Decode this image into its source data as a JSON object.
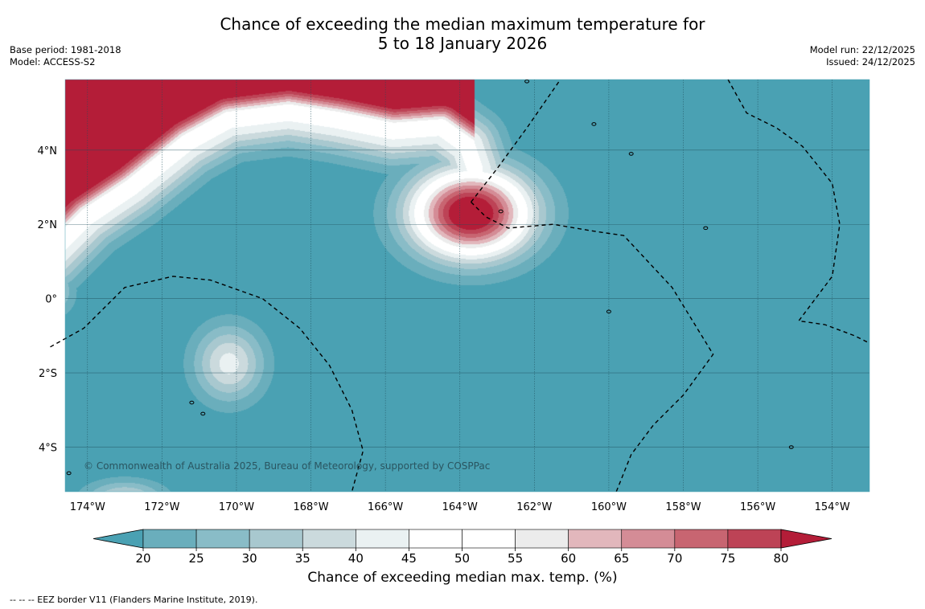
{
  "title": {
    "line1": "Chance of exceeding the median maximum temperature for",
    "line2": "5 to 18 January 2026"
  },
  "meta_left": {
    "base_period": "Base period: 1981-2018",
    "model": "Model: ACCESS-S2"
  },
  "meta_right": {
    "model_run": "Model run: 22/12/2025",
    "issued": "Issued: 24/12/2025"
  },
  "map": {
    "copyright": "© Commonwealth of Australia 2025, Bureau of Meteorology, supported by COSPPac",
    "lon_range": [
      -174.6,
      -153.0
    ],
    "lat_range": [
      -5.2,
      5.9
    ],
    "lon_ticks": [
      {
        "value": -174,
        "label": "174°W"
      },
      {
        "value": -172,
        "label": "172°W"
      },
      {
        "value": -170,
        "label": "170°W"
      },
      {
        "value": -168,
        "label": "168°W"
      },
      {
        "value": -166,
        "label": "166°W"
      },
      {
        "value": -164,
        "label": "164°W"
      },
      {
        "value": -162,
        "label": "162°W"
      },
      {
        "value": -160,
        "label": "160°W"
      },
      {
        "value": -158,
        "label": "158°W"
      },
      {
        "value": -156,
        "label": "156°W"
      },
      {
        "value": -154,
        "label": "154°W"
      }
    ],
    "lat_ticks": [
      {
        "value": 4,
        "label": "4°N"
      },
      {
        "value": 2,
        "label": "2°N"
      },
      {
        "value": 0,
        "label": "0°"
      },
      {
        "value": -2,
        "label": "2°S"
      },
      {
        "value": -4,
        "label": "4°S"
      }
    ],
    "background_value": 15,
    "features": [
      {
        "type": "warm-band",
        "path": [
          [
            -175,
            1.2
          ],
          [
            -174,
            2.2
          ],
          [
            -172.8,
            3.0
          ],
          [
            -171.3,
            4.2
          ],
          [
            -170.2,
            4.8
          ],
          [
            -168.6,
            5.0
          ],
          [
            -167.3,
            4.8
          ],
          [
            -165.8,
            4.5
          ],
          [
            -164.5,
            4.6
          ],
          [
            -163.8,
            4.1
          ],
          [
            -163.6,
            3.5
          ]
        ],
        "peak": 47,
        "width": 0.85
      },
      {
        "type": "warm-blob",
        "lon": -163.7,
        "lat": 2.3,
        "rx": 1.95,
        "ry": 1.45,
        "peak": 90
      },
      {
        "type": "cool-blob",
        "lon": -170.2,
        "lat": -1.75,
        "rx": 1.15,
        "ry": 1.25,
        "peak": 42
      },
      {
        "type": "cool-blob",
        "lon": -173.0,
        "lat": -5.4,
        "rx": 1.3,
        "ry": 0.6,
        "peak": 38
      },
      {
        "type": "cool-blob",
        "lon": -174.8,
        "lat": 0.2,
        "rx": 0.6,
        "ry": 0.8,
        "peak": 30
      }
    ],
    "islands": [
      {
        "lon": -162.2,
        "lat": 5.85
      },
      {
        "lon": -160.4,
        "lat": 4.7
      },
      {
        "lon": -159.4,
        "lat": 3.9
      },
      {
        "lon": -157.4,
        "lat": 1.9
      },
      {
        "lon": -162.9,
        "lat": 2.35
      },
      {
        "lon": -171.2,
        "lat": -2.8
      },
      {
        "lon": -170.9,
        "lat": -3.1
      },
      {
        "lon": -155.1,
        "lat": -4.0
      },
      {
        "lon": -174.5,
        "lat": -4.7
      },
      {
        "lon": -160.0,
        "lat": -0.35
      }
    ],
    "eez_lines": [
      [
        [
          -175,
          -1.3
        ],
        [
          -174.1,
          -0.8
        ],
        [
          -173.0,
          0.3
        ],
        [
          -171.7,
          0.6
        ],
        [
          -170.7,
          0.5
        ],
        [
          -169.3,
          0.0
        ],
        [
          -168.3,
          -0.8
        ],
        [
          -167.5,
          -1.8
        ],
        [
          -166.9,
          -3.0
        ],
        [
          -166.6,
          -4.1
        ],
        [
          -166.9,
          -5.2
        ]
      ],
      [
        [
          -163.7,
          2.6
        ],
        [
          -163.3,
          2.2
        ],
        [
          -162.7,
          1.9
        ],
        [
          -161.5,
          2.0
        ],
        [
          -160.3,
          1.8
        ],
        [
          -159.6,
          1.7
        ],
        [
          -158.3,
          0.3
        ],
        [
          -157.2,
          -1.5
        ],
        [
          -158.0,
          -2.6
        ],
        [
          -158.8,
          -3.4
        ],
        [
          -159.4,
          -4.2
        ],
        [
          -159.8,
          -5.2
        ]
      ],
      [
        [
          -163.7,
          2.6
        ],
        [
          -163.0,
          3.5
        ],
        [
          -162.2,
          4.6
        ],
        [
          -161.3,
          5.9
        ]
      ],
      [
        [
          -156.8,
          5.9
        ],
        [
          -156.3,
          5.0
        ],
        [
          -155.5,
          4.6
        ],
        [
          -154.8,
          4.1
        ],
        [
          -154.0,
          3.1
        ],
        [
          -153.8,
          2.0
        ],
        [
          -154.0,
          0.6
        ],
        [
          -154.9,
          -0.6
        ],
        [
          -154.2,
          -0.7
        ],
        [
          -153.4,
          -1.0
        ],
        [
          -153.0,
          -1.2
        ]
      ]
    ]
  },
  "colorbar": {
    "title": "Chance of exceeding median max. temp. (%)",
    "ticks": [
      "20",
      "25",
      "30",
      "35",
      "40",
      "45",
      "50",
      "55",
      "60",
      "65",
      "70",
      "75",
      "80"
    ],
    "below_color": "#4aa1b3",
    "above_color": "#b41d38",
    "bins": [
      {
        "range": [
          20,
          25
        ],
        "color": "#6aaebc"
      },
      {
        "range": [
          25,
          30
        ],
        "color": "#89bcc7"
      },
      {
        "range": [
          30,
          35
        ],
        "color": "#a8c8cf"
      },
      {
        "range": [
          35,
          40
        ],
        "color": "#cbdadd"
      },
      {
        "range": [
          40,
          45
        ],
        "color": "#eaf1f2"
      },
      {
        "range": [
          45,
          50
        ],
        "color": "#ffffff"
      },
      {
        "range": [
          50,
          55
        ],
        "color": "#ffffff"
      },
      {
        "range": [
          55,
          60
        ],
        "color": "#ececec"
      },
      {
        "range": [
          60,
          65
        ],
        "color": "#e2b7bc"
      },
      {
        "range": [
          65,
          70
        ],
        "color": "#d48c96"
      },
      {
        "range": [
          70,
          75
        ],
        "color": "#c86571"
      },
      {
        "range": [
          75,
          80
        ],
        "color": "#bd4356"
      }
    ]
  },
  "footer_note": "--  --  -- EEZ border V11 (Flanders Marine Institute, 2019)."
}
